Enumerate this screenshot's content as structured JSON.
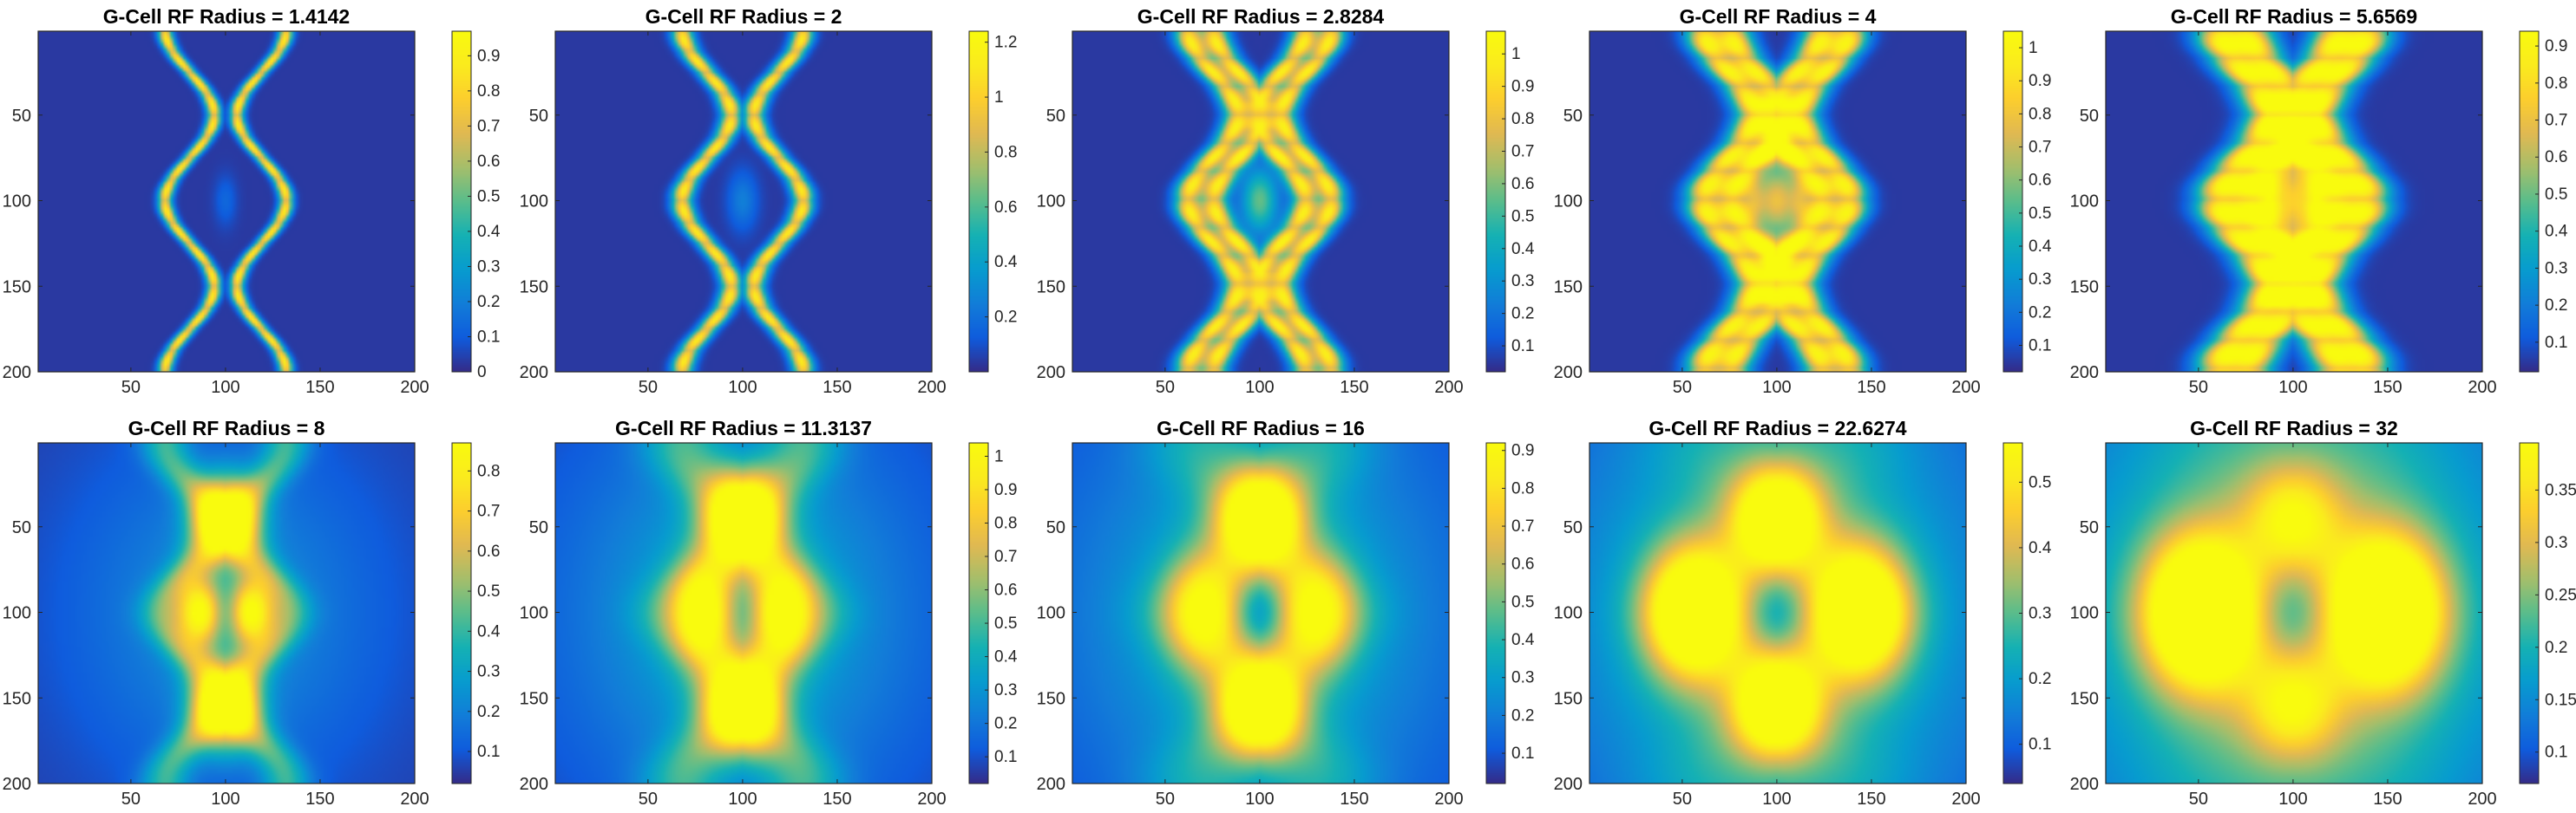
{
  "figure": {
    "colormap": "parula",
    "panel_count": 10
  },
  "chart_data": [
    {
      "type": "heatmap",
      "title": "G-Cell RF Radius = 1.4142",
      "xlim": [
        1,
        200
      ],
      "ylim": [
        1,
        200
      ],
      "y_direction": "reversed",
      "x_ticks": [
        50,
        100,
        150,
        200
      ],
      "y_ticks": [
        50,
        100,
        150,
        200
      ],
      "cmin": 0,
      "cmax": 0.97,
      "colorbar_ticks": [
        0,
        0.1,
        0.2,
        0.3,
        0.4,
        0.5,
        0.6,
        0.7,
        0.8,
        0.9
      ]
    },
    {
      "type": "heatmap",
      "title": "G-Cell RF Radius = 2",
      "xlim": [
        1,
        200
      ],
      "ylim": [
        1,
        200
      ],
      "y_direction": "reversed",
      "x_ticks": [
        50,
        100,
        150,
        200
      ],
      "y_ticks": [
        50,
        100,
        150,
        200
      ],
      "cmin": 0,
      "cmax": 1.24,
      "colorbar_ticks": [
        0.2,
        0.4,
        0.6,
        0.8,
        1,
        1.2
      ]
    },
    {
      "type": "heatmap",
      "title": "G-Cell RF Radius = 2.8284",
      "xlim": [
        1,
        200
      ],
      "ylim": [
        1,
        200
      ],
      "y_direction": "reversed",
      "x_ticks": [
        50,
        100,
        150,
        200
      ],
      "y_ticks": [
        50,
        100,
        150,
        200
      ],
      "cmin": 0.02,
      "cmax": 1.07,
      "colorbar_ticks": [
        0.1,
        0.2,
        0.3,
        0.4,
        0.5,
        0.6,
        0.7,
        0.8,
        0.9,
        1
      ]
    },
    {
      "type": "heatmap",
      "title": "G-Cell RF Radius = 4",
      "xlim": [
        1,
        200
      ],
      "ylim": [
        1,
        200
      ],
      "y_direction": "reversed",
      "x_ticks": [
        50,
        100,
        150,
        200
      ],
      "y_ticks": [
        50,
        100,
        150,
        200
      ],
      "cmin": 0.02,
      "cmax": 1.05,
      "colorbar_ticks": [
        0.1,
        0.2,
        0.3,
        0.4,
        0.5,
        0.6,
        0.7,
        0.8,
        0.9,
        1
      ]
    },
    {
      "type": "heatmap",
      "title": "G-Cell RF Radius = 5.6569",
      "xlim": [
        1,
        200
      ],
      "ylim": [
        1,
        200
      ],
      "y_direction": "reversed",
      "x_ticks": [
        50,
        100,
        150,
        200
      ],
      "y_ticks": [
        50,
        100,
        150,
        200
      ],
      "cmin": 0.02,
      "cmax": 0.94,
      "colorbar_ticks": [
        0.1,
        0.2,
        0.3,
        0.4,
        0.5,
        0.6,
        0.7,
        0.8,
        0.9
      ]
    },
    {
      "type": "heatmap",
      "title": "G-Cell RF Radius = 8",
      "xlim": [
        1,
        200
      ],
      "ylim": [
        1,
        200
      ],
      "y_direction": "reversed",
      "x_ticks": [
        50,
        100,
        150,
        200
      ],
      "y_ticks": [
        50,
        100,
        150,
        200
      ],
      "cmin": 0.02,
      "cmax": 0.87,
      "colorbar_ticks": [
        0.1,
        0.2,
        0.3,
        0.4,
        0.5,
        0.6,
        0.7,
        0.8
      ]
    },
    {
      "type": "heatmap",
      "title": "G-Cell RF Radius = 11.3137",
      "xlim": [
        1,
        200
      ],
      "ylim": [
        1,
        200
      ],
      "y_direction": "reversed",
      "x_ticks": [
        50,
        100,
        150,
        200
      ],
      "y_ticks": [
        50,
        100,
        150,
        200
      ],
      "cmin": 0.02,
      "cmax": 1.04,
      "colorbar_ticks": [
        0.1,
        0.2,
        0.3,
        0.4,
        0.5,
        0.6,
        0.7,
        0.8,
        0.9,
        1
      ]
    },
    {
      "type": "heatmap",
      "title": "G-Cell RF Radius = 16",
      "xlim": [
        1,
        200
      ],
      "ylim": [
        1,
        200
      ],
      "y_direction": "reversed",
      "x_ticks": [
        50,
        100,
        150,
        200
      ],
      "y_ticks": [
        50,
        100,
        150,
        200
      ],
      "cmin": 0.02,
      "cmax": 0.92,
      "colorbar_ticks": [
        0.1,
        0.2,
        0.3,
        0.4,
        0.5,
        0.6,
        0.7,
        0.8,
        0.9
      ]
    },
    {
      "type": "heatmap",
      "title": "G-Cell RF Radius = 22.6274",
      "xlim": [
        1,
        200
      ],
      "ylim": [
        1,
        200
      ],
      "y_direction": "reversed",
      "x_ticks": [
        50,
        100,
        150,
        200
      ],
      "y_ticks": [
        50,
        100,
        150,
        200
      ],
      "cmin": 0.04,
      "cmax": 0.56,
      "colorbar_ticks": [
        0.1,
        0.2,
        0.3,
        0.4,
        0.5
      ]
    },
    {
      "type": "heatmap",
      "title": "G-Cell RF Radius = 32",
      "xlim": [
        1,
        200
      ],
      "ylim": [
        1,
        200
      ],
      "y_direction": "reversed",
      "x_ticks": [
        50,
        100,
        150,
        200
      ],
      "y_ticks": [
        50,
        100,
        150,
        200
      ],
      "cmin": 0.07,
      "cmax": 0.395,
      "colorbar_ticks": [
        0.1,
        0.15,
        0.2,
        0.25,
        0.3,
        0.35
      ]
    }
  ]
}
